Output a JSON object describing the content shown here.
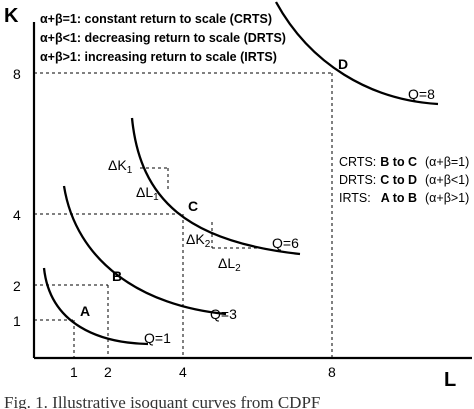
{
  "axes": {
    "y_label": "K",
    "x_label": "L",
    "x_ticks": [
      "1",
      "2",
      "4",
      "8"
    ],
    "y_ticks": [
      "1",
      "2",
      "4",
      "8"
    ]
  },
  "legend_top": [
    "α+β=1: constant return to scale (CRTS)",
    "α+β<1: decreasing return to scale (DRTS)",
    "α+β>1: increasing return to scale (IRTS)"
  ],
  "legend_right": [
    {
      "label": "CRTS:",
      "range": "B to C",
      "cond": "(α+β=1)"
    },
    {
      "label": "DRTS:",
      "range": "C to D",
      "cond": "(α+β<1)"
    },
    {
      "label": "IRTS:",
      "range": "A to B",
      "cond": "(α+β>1)"
    }
  ],
  "points": [
    {
      "name": "A"
    },
    {
      "name": "B"
    },
    {
      "name": "C"
    },
    {
      "name": "D"
    }
  ],
  "curves": [
    {
      "label": "Q=1"
    },
    {
      "label": "Q=3"
    },
    {
      "label": "Q=6"
    },
    {
      "label": "Q=8"
    }
  ],
  "deltas": {
    "dk1": "ΔK",
    "dk1_sub": "1",
    "dl1": "ΔL",
    "dl1_sub": "1",
    "dk2": "ΔK",
    "dk2_sub": "2",
    "dl2": "ΔL",
    "dl2_sub": "2"
  },
  "caption": "Fig. 1. Illustrative isoquant curves from CDPF"
}
